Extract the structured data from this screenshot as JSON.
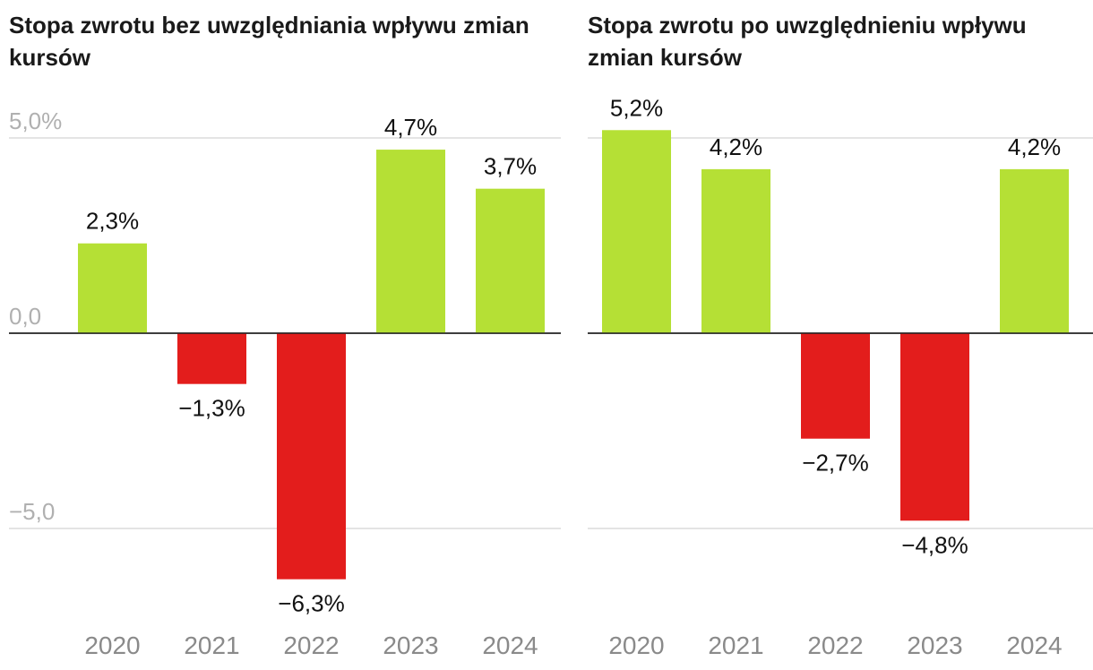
{
  "colors": {
    "positive": "#b5e035",
    "negative": "#e31d1c",
    "grid": "#dcdcdc",
    "axis": "#222222"
  },
  "chart_data": [
    {
      "type": "bar",
      "title": "Stopa zwrotu bez uwzględniania wpływu zmian kursów",
      "categories": [
        "2020",
        "2021",
        "2022",
        "2023",
        "2024"
      ],
      "values": [
        2.3,
        -1.3,
        -6.3,
        4.7,
        3.7
      ],
      "data_labels": [
        "2,3%",
        "−1,3%",
        "−6,3%",
        "4,7%",
        "3,7%"
      ],
      "yticks": [
        5,
        0,
        -5
      ],
      "ytick_labels": [
        "5,0%",
        "0,0",
        "−5,0"
      ],
      "ylim": [
        -7,
        5.3
      ],
      "xlabel": "",
      "ylabel": ""
    },
    {
      "type": "bar",
      "title": "Stopa zwrotu po uwzględnieniu wpływu zmian kursów",
      "categories": [
        "2020",
        "2021",
        "2022",
        "2023",
        "2024"
      ],
      "values": [
        5.2,
        4.2,
        -2.7,
        -4.8,
        4.2
      ],
      "data_labels": [
        "5,2%",
        "4,2%",
        "−2,7%",
        "−4,8%",
        "4,2%"
      ],
      "yticks": [
        5,
        0,
        -5
      ],
      "ytick_labels": [
        "",
        "",
        ""
      ],
      "ylim": [
        -7,
        5.3
      ],
      "xlabel": "",
      "ylabel": ""
    }
  ]
}
